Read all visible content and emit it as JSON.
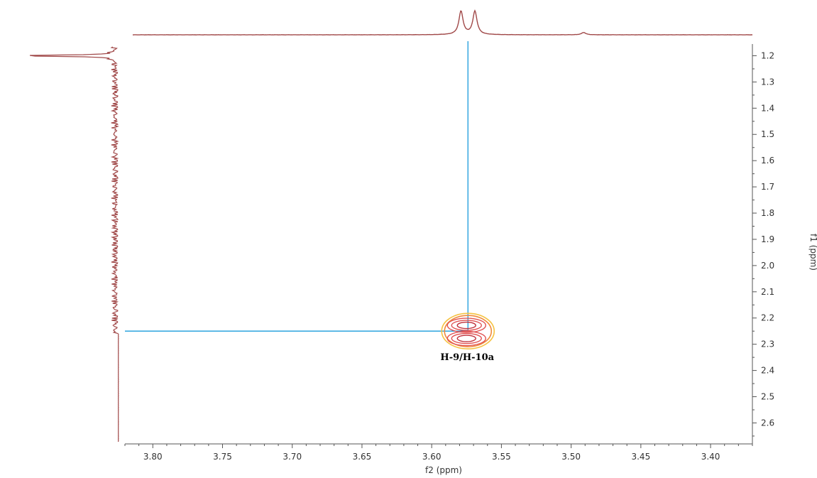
{
  "chart_data": {
    "type": "contour",
    "title": "",
    "xlabel": "f2 (ppm)",
    "ylabel": "f1 (ppm)",
    "xlim": [
      3.82,
      3.37
    ],
    "ylim": [
      1.15,
      2.68
    ],
    "x_ticks": [
      {
        "value": 3.8,
        "label": "3.80"
      },
      {
        "value": 3.75,
        "label": "3.75"
      },
      {
        "value": 3.7,
        "label": "3.70"
      },
      {
        "value": 3.65,
        "label": "3.65"
      },
      {
        "value": 3.6,
        "label": "3.60"
      },
      {
        "value": 3.55,
        "label": "3.55"
      },
      {
        "value": 3.5,
        "label": "3.50"
      },
      {
        "value": 3.45,
        "label": "3.45"
      },
      {
        "value": 3.4,
        "label": "3.40"
      }
    ],
    "y_ticks": [
      {
        "value": 1.2,
        "label": "1.2"
      },
      {
        "value": 1.3,
        "label": "1.3"
      },
      {
        "value": 1.4,
        "label": "1.4"
      },
      {
        "value": 1.5,
        "label": "1.5"
      },
      {
        "value": 1.6,
        "label": "1.6"
      },
      {
        "value": 1.7,
        "label": "1.7"
      },
      {
        "value": 1.8,
        "label": "1.8"
      },
      {
        "value": 1.9,
        "label": "1.9"
      },
      {
        "value": 2.0,
        "label": "2.0"
      },
      {
        "value": 2.1,
        "label": "2.1"
      },
      {
        "value": 2.2,
        "label": "2.2"
      },
      {
        "value": 2.3,
        "label": "2.3"
      },
      {
        "value": 2.4,
        "label": "2.4"
      },
      {
        "value": 2.5,
        "label": "2.5"
      },
      {
        "value": 2.6,
        "label": "2.6"
      }
    ],
    "cross_peaks": [
      {
        "label": "H-9/H-10a",
        "f2": 3.574,
        "f1": 2.25,
        "lobes_f1": [
          2.228,
          2.278
        ]
      }
    ],
    "guide_lines": {
      "f2": 3.574,
      "f1": 2.25,
      "color": "#1a9bdc"
    },
    "f2_projection": {
      "peaks": [
        {
          "ppm": 3.579,
          "height": 1.0
        },
        {
          "ppm": 3.569,
          "height": 1.0
        },
        {
          "ppm": 3.491,
          "height": 0.1
        }
      ]
    },
    "f1_projection": {
      "peaks": [
        {
          "ppm": 1.2,
          "height": 1.0
        }
      ]
    },
    "colors": {
      "projection": "#a04848",
      "guide": "#1a9bdc",
      "contour_levels": [
        "#f5c242",
        "#f08a3c",
        "#e05252",
        "#c0303a"
      ],
      "frame": "#555555"
    }
  }
}
